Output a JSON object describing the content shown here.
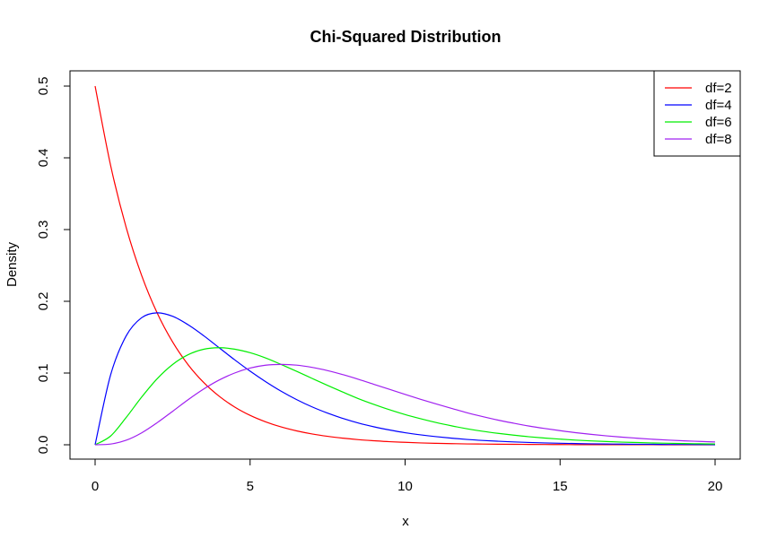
{
  "chart_data": {
    "type": "line",
    "title": "Chi-Squared Distribution",
    "xlabel": "x",
    "ylabel": "Density",
    "xlim": [
      0,
      20
    ],
    "ylim": [
      0,
      0.5
    ],
    "xticks": [
      0,
      5,
      10,
      15,
      20
    ],
    "yticks": [
      0.0,
      0.1,
      0.2,
      0.3,
      0.4,
      0.5
    ],
    "xtick_labels": [
      "0",
      "5",
      "10",
      "15",
      "20"
    ],
    "ytick_labels": [
      "0.0",
      "0.1",
      "0.2",
      "0.3",
      "0.4",
      "0.5"
    ],
    "grid": false,
    "legend_position": "top-right",
    "x": [
      0,
      0.5,
      1,
      1.5,
      2,
      2.5,
      3,
      3.5,
      4,
      4.5,
      5,
      5.5,
      6,
      6.5,
      7,
      7.5,
      8,
      8.5,
      9,
      9.5,
      10,
      10.5,
      11,
      11.5,
      12,
      12.5,
      13,
      13.5,
      14,
      14.5,
      15,
      15.5,
      16,
      16.5,
      17,
      17.5,
      18,
      18.5,
      19,
      19.5,
      20
    ],
    "series": [
      {
        "name": "df=2",
        "color": "#ff0000",
        "values": [
          0.5,
          0.3894,
          0.3033,
          0.2362,
          0.1839,
          0.1433,
          0.1116,
          0.0869,
          0.0677,
          0.0527,
          0.041,
          0.032,
          0.0249,
          0.0194,
          0.0151,
          0.0118,
          0.0092,
          0.0071,
          0.0056,
          0.0043,
          0.0034,
          0.0026,
          0.002,
          0.0016,
          0.0012,
          0.001,
          0.0008,
          0.0006,
          0.0005,
          0.0004,
          0.0003,
          0.0002,
          0.0002,
          0.0001,
          0.0001,
          0.0001,
          0.0001,
          0.0,
          0.0,
          0.0,
          0.0
        ]
      },
      {
        "name": "df=4",
        "color": "#0000ff",
        "values": [
          0.0,
          0.0974,
          0.1516,
          0.1771,
          0.1839,
          0.1791,
          0.1673,
          0.1521,
          0.1353,
          0.1185,
          0.1026,
          0.088,
          0.0747,
          0.063,
          0.0528,
          0.0441,
          0.0366,
          0.0302,
          0.025,
          0.0206,
          0.0168,
          0.0138,
          0.0113,
          0.0092,
          0.0074,
          0.006,
          0.0049,
          0.004,
          0.0032,
          0.0026,
          0.0021,
          0.0017,
          0.0013,
          0.0011,
          0.0009,
          0.0007,
          0.0006,
          0.0004,
          0.0004,
          0.0003,
          0.0002
        ]
      },
      {
        "name": "df=6",
        "color": "#00ee00",
        "values": [
          0.0,
          0.0122,
          0.0379,
          0.0664,
          0.092,
          0.1119,
          0.1255,
          0.1331,
          0.1353,
          0.1333,
          0.1283,
          0.121,
          0.112,
          0.1024,
          0.0925,
          0.0827,
          0.0733,
          0.0642,
          0.0562,
          0.0488,
          0.0421,
          0.0363,
          0.031,
          0.0264,
          0.0223,
          0.0188,
          0.0159,
          0.0134,
          0.0112,
          0.0094,
          0.0079,
          0.0065,
          0.0054,
          0.0045,
          0.0037,
          0.0031,
          0.0025,
          0.0021,
          0.0017,
          0.0014,
          0.0011
        ]
      },
      {
        "name": "df=8",
        "color": "#a020f0",
        "values": [
          0.0,
          0.001,
          0.0063,
          0.0166,
          0.0307,
          0.0466,
          0.0628,
          0.0776,
          0.0902,
          0.1,
          0.1069,
          0.1109,
          0.112,
          0.111,
          0.1079,
          0.1034,
          0.0977,
          0.0912,
          0.0842,
          0.0772,
          0.0702,
          0.0634,
          0.0569,
          0.0507,
          0.0446,
          0.0393,
          0.0344,
          0.0301,
          0.0261,
          0.0227,
          0.0197,
          0.0169,
          0.0145,
          0.0124,
          0.0106,
          0.0091,
          0.0077,
          0.0065,
          0.0055,
          0.0047,
          0.0039
        ]
      }
    ]
  }
}
